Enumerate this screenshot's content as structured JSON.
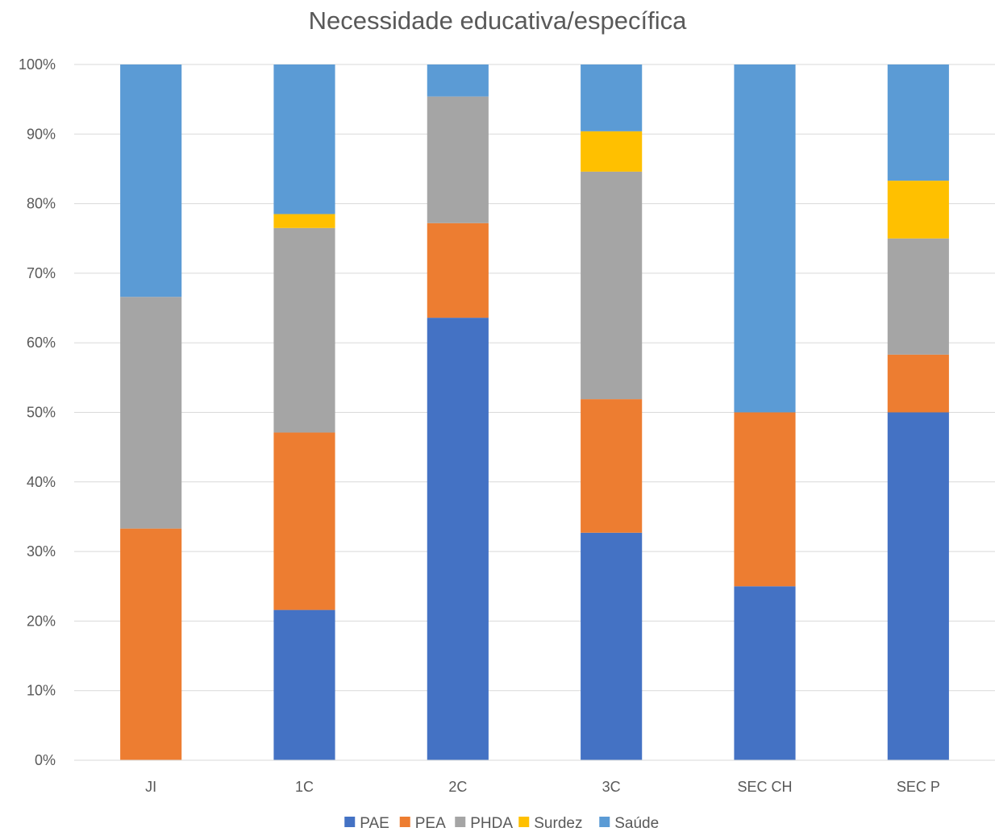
{
  "chart_data": {
    "type": "bar",
    "stacked": true,
    "normalized": true,
    "title": "Necessidade educativa/específica",
    "xlabel": "",
    "ylabel": "",
    "categories": [
      "JI",
      "1C",
      "2C",
      "3C",
      "SEC CH",
      "SEC P"
    ],
    "ylim": [
      0,
      100
    ],
    "yticks": [
      "0%",
      "10%",
      "20%",
      "30%",
      "40%",
      "50%",
      "60%",
      "70%",
      "80%",
      "90%",
      "100%"
    ],
    "grid": true,
    "legend_position": "bottom",
    "series": [
      {
        "name": "PAE",
        "color": "#4472C4",
        "values": [
          0,
          21.6,
          63.6,
          32.7,
          25,
          50
        ]
      },
      {
        "name": "PEA",
        "color": "#ED7D31",
        "values": [
          33.3,
          25.5,
          13.6,
          19.2,
          25,
          8.3
        ]
      },
      {
        "name": "PHDA",
        "color": "#A5A5A5",
        "values": [
          33.3,
          29.4,
          18.2,
          32.7,
          0,
          16.7
        ]
      },
      {
        "name": "Surdez",
        "color": "#FFC000",
        "values": [
          0,
          2.0,
          0,
          5.8,
          0,
          8.3
        ]
      },
      {
        "name": "Saúde",
        "color": "#5B9BD5",
        "values": [
          33.4,
          21.5,
          4.6,
          9.6,
          50,
          16.7
        ]
      }
    ]
  }
}
